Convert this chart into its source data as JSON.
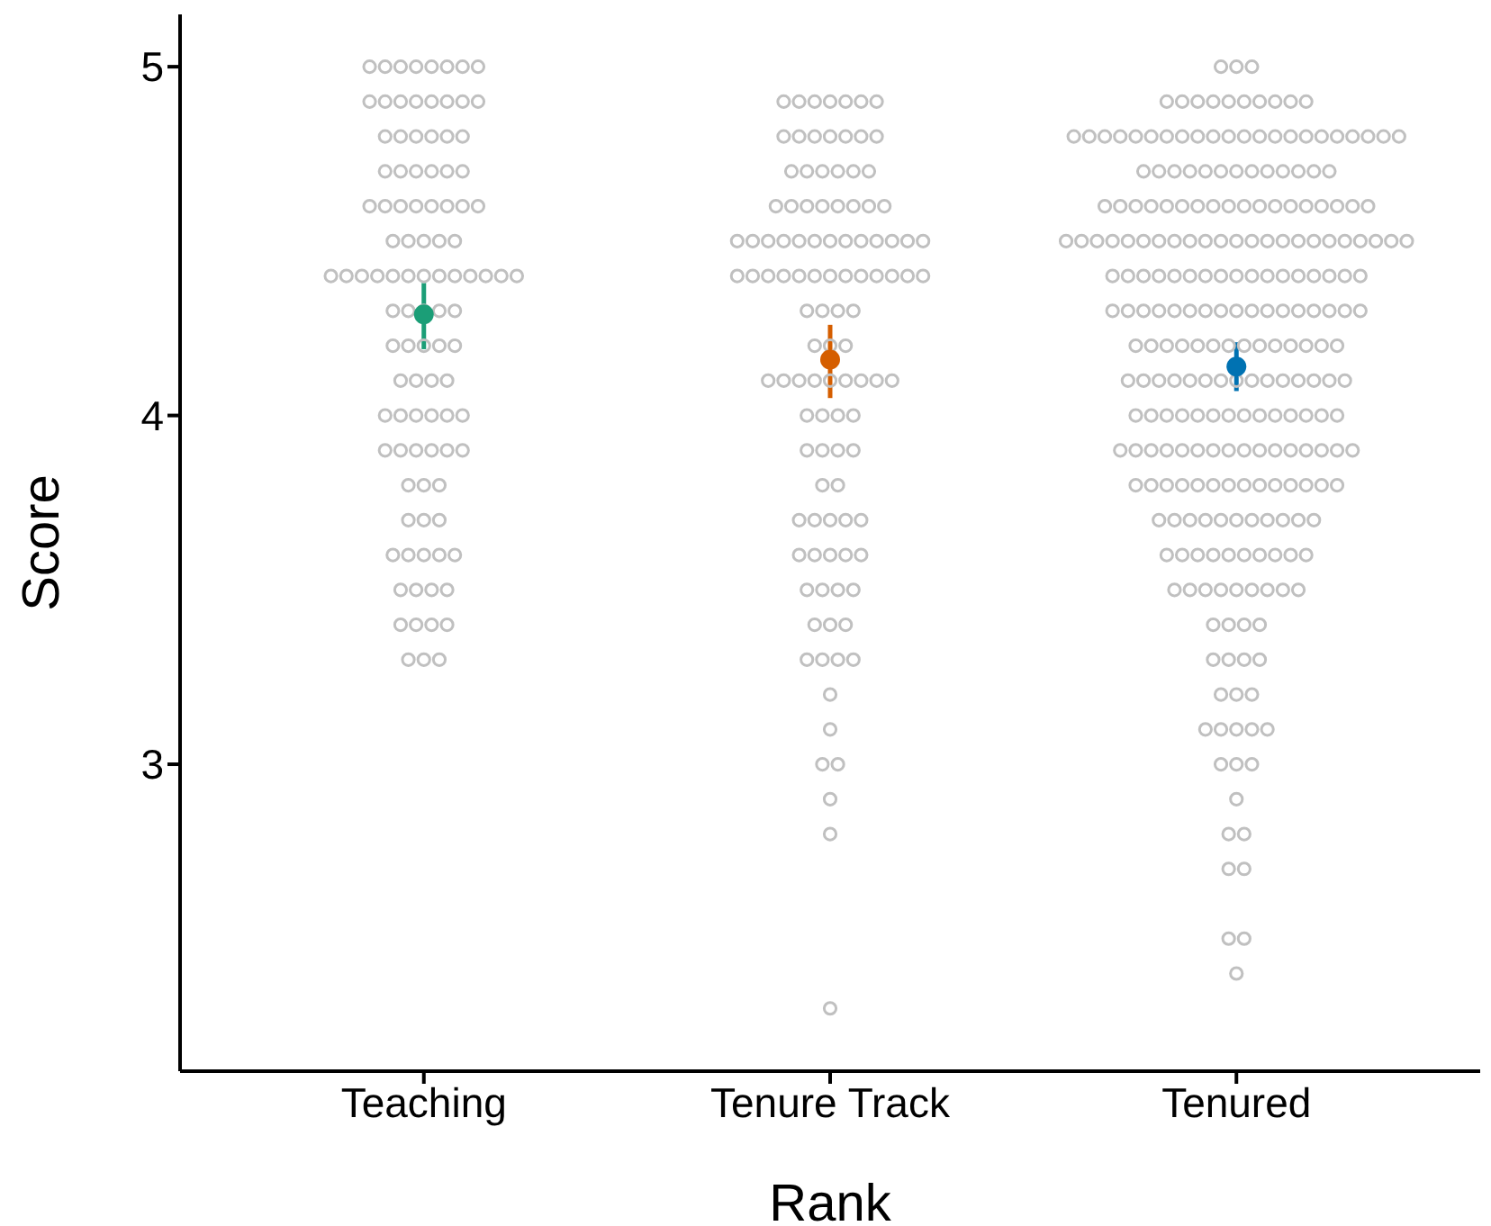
{
  "chart_data": {
    "type": "scatter",
    "xlabel": "Rank",
    "ylabel": "Score",
    "categories": [
      "Teaching",
      "Tenure Track",
      "Tenured"
    ],
    "ylim": [
      2.12,
      5.15
    ],
    "yticks": [
      3,
      4,
      5
    ],
    "marker": "circle",
    "series": [
      {
        "color": "#c0c0c0",
        "x": [
          "Teaching",
          "Teaching",
          "Teaching",
          "Teaching",
          "Teaching",
          "Teaching",
          "Teaching",
          "Teaching",
          "Teaching",
          "Teaching",
          "Teaching",
          "Teaching",
          "Teaching",
          "Teaching",
          "Teaching",
          "Teaching",
          "Teaching",
          "Teaching",
          "Teaching",
          "Teaching",
          "Teaching",
          "Teaching",
          "Teaching",
          "Teaching",
          "Teaching",
          "Teaching",
          "Teaching",
          "Teaching",
          "Teaching",
          "Teaching",
          "Teaching",
          "Teaching",
          "Teaching",
          "Teaching",
          "Teaching",
          "Teaching",
          "Teaching",
          "Teaching",
          "Teaching",
          "Teaching",
          "Teaching",
          "Teaching",
          "Teaching",
          "Teaching",
          "Teaching",
          "Teaching",
          "Teaching",
          "Teaching",
          "Teaching",
          "Teaching",
          "Teaching",
          "Teaching",
          "Teaching",
          "Teaching",
          "Teaching",
          "Teaching",
          "Teaching",
          "Teaching",
          "Teaching",
          "Teaching",
          "Teaching",
          "Teaching",
          "Teaching",
          "Teaching",
          "Teaching",
          "Teaching",
          "Teaching",
          "Teaching",
          "Teaching",
          "Teaching",
          "Teaching",
          "Teaching",
          "Teaching",
          "Teaching",
          "Teaching",
          "Teaching",
          "Teaching",
          "Teaching",
          "Teaching",
          "Teaching",
          "Teaching",
          "Teaching",
          "Teaching",
          "Teaching",
          "Teaching",
          "Teaching",
          "Teaching",
          "Teaching",
          "Teaching",
          "Teaching",
          "Teaching",
          "Teaching",
          "Teaching",
          "Teaching",
          "Teaching",
          "Teaching",
          "Teaching",
          "Teaching",
          "Teaching",
          "Teaching",
          "Teaching",
          "Teaching"
        ],
        "values": [
          5,
          5,
          5,
          5,
          5,
          5,
          5,
          5,
          4.9,
          4.9,
          4.9,
          4.9,
          4.9,
          4.9,
          4.9,
          4.9,
          4.8,
          4.8,
          4.8,
          4.8,
          4.8,
          4.8,
          4.7,
          4.7,
          4.7,
          4.7,
          4.7,
          4.7,
          4.6,
          4.6,
          4.6,
          4.6,
          4.6,
          4.6,
          4.6,
          4.6,
          4.5,
          4.5,
          4.5,
          4.5,
          4.5,
          4.4,
          4.4,
          4.4,
          4.4,
          4.4,
          4.4,
          4.4,
          4.4,
          4.4,
          4.4,
          4.4,
          4.4,
          4.4,
          4.3,
          4.3,
          4.3,
          4.3,
          4.3,
          4.2,
          4.2,
          4.2,
          4.2,
          4.2,
          4.1,
          4.1,
          4.1,
          4.1,
          4,
          4,
          4,
          4,
          4,
          4,
          3.9,
          3.9,
          3.9,
          3.9,
          3.9,
          3.9,
          3.8,
          3.8,
          3.8,
          3.7,
          3.7,
          3.7,
          3.6,
          3.6,
          3.6,
          3.6,
          3.6,
          3.5,
          3.5,
          3.5,
          3.5,
          3.4,
          3.4,
          3.4,
          3.4,
          3.3,
          3.3,
          3.3
        ]
      },
      {
        "color": "#c0c0c0",
        "x": [
          "Tenure Track",
          "Tenure Track",
          "Tenure Track",
          "Tenure Track",
          "Tenure Track",
          "Tenure Track",
          "Tenure Track",
          "Tenure Track",
          "Tenure Track",
          "Tenure Track",
          "Tenure Track",
          "Tenure Track",
          "Tenure Track",
          "Tenure Track",
          "Tenure Track",
          "Tenure Track",
          "Tenure Track",
          "Tenure Track",
          "Tenure Track",
          "Tenure Track",
          "Tenure Track",
          "Tenure Track",
          "Tenure Track",
          "Tenure Track",
          "Tenure Track",
          "Tenure Track",
          "Tenure Track",
          "Tenure Track",
          "Tenure Track",
          "Tenure Track",
          "Tenure Track",
          "Tenure Track",
          "Tenure Track",
          "Tenure Track",
          "Tenure Track",
          "Tenure Track",
          "Tenure Track",
          "Tenure Track",
          "Tenure Track",
          "Tenure Track",
          "Tenure Track",
          "Tenure Track",
          "Tenure Track",
          "Tenure Track",
          "Tenure Track",
          "Tenure Track",
          "Tenure Track",
          "Tenure Track",
          "Tenure Track",
          "Tenure Track",
          "Tenure Track",
          "Tenure Track",
          "Tenure Track",
          "Tenure Track",
          "Tenure Track",
          "Tenure Track",
          "Tenure Track",
          "Tenure Track",
          "Tenure Track",
          "Tenure Track",
          "Tenure Track",
          "Tenure Track",
          "Tenure Track",
          "Tenure Track",
          "Tenure Track",
          "Tenure Track",
          "Tenure Track",
          "Tenure Track",
          "Tenure Track",
          "Tenure Track",
          "Tenure Track",
          "Tenure Track",
          "Tenure Track",
          "Tenure Track",
          "Tenure Track",
          "Tenure Track",
          "Tenure Track",
          "Tenure Track",
          "Tenure Track",
          "Tenure Track",
          "Tenure Track",
          "Tenure Track",
          "Tenure Track",
          "Tenure Track",
          "Tenure Track",
          "Tenure Track",
          "Tenure Track",
          "Tenure Track",
          "Tenure Track",
          "Tenure Track",
          "Tenure Track",
          "Tenure Track",
          "Tenure Track",
          "Tenure Track",
          "Tenure Track",
          "Tenure Track",
          "Tenure Track",
          "Tenure Track",
          "Tenure Track",
          "Tenure Track",
          "Tenure Track",
          "Tenure Track",
          "Tenure Track",
          "Tenure Track",
          "Tenure Track",
          "Tenure Track",
          "Tenure Track",
          "Tenure Track"
        ],
        "values": [
          4.9,
          4.9,
          4.9,
          4.9,
          4.9,
          4.9,
          4.9,
          4.8,
          4.8,
          4.8,
          4.8,
          4.8,
          4.8,
          4.8,
          4.7,
          4.7,
          4.7,
          4.7,
          4.7,
          4.7,
          4.6,
          4.6,
          4.6,
          4.6,
          4.6,
          4.6,
          4.6,
          4.6,
          4.5,
          4.5,
          4.5,
          4.5,
          4.5,
          4.5,
          4.5,
          4.5,
          4.5,
          4.5,
          4.5,
          4.5,
          4.5,
          4.4,
          4.4,
          4.4,
          4.4,
          4.4,
          4.4,
          4.4,
          4.4,
          4.4,
          4.4,
          4.4,
          4.4,
          4.4,
          4.3,
          4.3,
          4.3,
          4.3,
          4.2,
          4.2,
          4.2,
          4.1,
          4.1,
          4.1,
          4.1,
          4.1,
          4.1,
          4.1,
          4.1,
          4.1,
          4,
          4,
          4,
          4,
          3.9,
          3.9,
          3.9,
          3.9,
          3.8,
          3.8,
          3.7,
          3.7,
          3.7,
          3.7,
          3.7,
          3.6,
          3.6,
          3.6,
          3.6,
          3.6,
          3.5,
          3.5,
          3.5,
          3.5,
          3.4,
          3.4,
          3.4,
          3.3,
          3.3,
          3.3,
          3.3,
          3.2,
          3.1,
          3,
          3,
          2.9,
          2.8,
          2.3
        ]
      },
      {
        "color": "#c0c0c0",
        "x": [
          "Tenured",
          "Tenured",
          "Tenured",
          "Tenured",
          "Tenured",
          "Tenured",
          "Tenured",
          "Tenured",
          "Tenured",
          "Tenured",
          "Tenured",
          "Tenured",
          "Tenured",
          "Tenured",
          "Tenured",
          "Tenured",
          "Tenured",
          "Tenured",
          "Tenured",
          "Tenured",
          "Tenured",
          "Tenured",
          "Tenured",
          "Tenured",
          "Tenured",
          "Tenured",
          "Tenured",
          "Tenured",
          "Tenured",
          "Tenured",
          "Tenured",
          "Tenured",
          "Tenured",
          "Tenured",
          "Tenured",
          "Tenured",
          "Tenured",
          "Tenured",
          "Tenured",
          "Tenured",
          "Tenured",
          "Tenured",
          "Tenured",
          "Tenured",
          "Tenured",
          "Tenured",
          "Tenured",
          "Tenured",
          "Tenured",
          "Tenured",
          "Tenured",
          "Tenured",
          "Tenured",
          "Tenured",
          "Tenured",
          "Tenured",
          "Tenured",
          "Tenured",
          "Tenured",
          "Tenured",
          "Tenured",
          "Tenured",
          "Tenured",
          "Tenured",
          "Tenured",
          "Tenured",
          "Tenured",
          "Tenured",
          "Tenured",
          "Tenured",
          "Tenured",
          "Tenured",
          "Tenured",
          "Tenured",
          "Tenured",
          "Tenured",
          "Tenured",
          "Tenured",
          "Tenured",
          "Tenured",
          "Tenured",
          "Tenured",
          "Tenured",
          "Tenured",
          "Tenured",
          "Tenured",
          "Tenured",
          "Tenured",
          "Tenured",
          "Tenured",
          "Tenured",
          "Tenured",
          "Tenured",
          "Tenured",
          "Tenured",
          "Tenured",
          "Tenured",
          "Tenured",
          "Tenured",
          "Tenured",
          "Tenured",
          "Tenured",
          "Tenured",
          "Tenured",
          "Tenured",
          "Tenured",
          "Tenured",
          "Tenured",
          "Tenured",
          "Tenured",
          "Tenured",
          "Tenured",
          "Tenured",
          "Tenured",
          "Tenured",
          "Tenured",
          "Tenured",
          "Tenured",
          "Tenured",
          "Tenured",
          "Tenured",
          "Tenured",
          "Tenured",
          "Tenured",
          "Tenured",
          "Tenured",
          "Tenured",
          "Tenured",
          "Tenured",
          "Tenured",
          "Tenured",
          "Tenured",
          "Tenured",
          "Tenured",
          "Tenured",
          "Tenured",
          "Tenured",
          "Tenured",
          "Tenured",
          "Tenured",
          "Tenured",
          "Tenured",
          "Tenured",
          "Tenured",
          "Tenured",
          "Tenured",
          "Tenured",
          "Tenured",
          "Tenured",
          "Tenured",
          "Tenured",
          "Tenured",
          "Tenured",
          "Tenured",
          "Tenured",
          "Tenured",
          "Tenured",
          "Tenured",
          "Tenured",
          "Tenured",
          "Tenured",
          "Tenured",
          "Tenured",
          "Tenured",
          "Tenured",
          "Tenured",
          "Tenured",
          "Tenured",
          "Tenured",
          "Tenured",
          "Tenured",
          "Tenured",
          "Tenured",
          "Tenured",
          "Tenured",
          "Tenured",
          "Tenured",
          "Tenured",
          "Tenured",
          "Tenured",
          "Tenured",
          "Tenured",
          "Tenured",
          "Tenured",
          "Tenured",
          "Tenured",
          "Tenured",
          "Tenured",
          "Tenured",
          "Tenured",
          "Tenured",
          "Tenured",
          "Tenured",
          "Tenured",
          "Tenured",
          "Tenured",
          "Tenured",
          "Tenured",
          "Tenured",
          "Tenured",
          "Tenured",
          "Tenured",
          "Tenured",
          "Tenured",
          "Tenured",
          "Tenured",
          "Tenured",
          "Tenured",
          "Tenured",
          "Tenured",
          "Tenured",
          "Tenured",
          "Tenured",
          "Tenured",
          "Tenured",
          "Tenured",
          "Tenured",
          "Tenured",
          "Tenured",
          "Tenured",
          "Tenured",
          "Tenured",
          "Tenured",
          "Tenured",
          "Tenured",
          "Tenured",
          "Tenured",
          "Tenured",
          "Tenured",
          "Tenured",
          "Tenured",
          "Tenured",
          "Tenured",
          "Tenured",
          "Tenured",
          "Tenured",
          "Tenured",
          "Tenured",
          "Tenured",
          "Tenured",
          "Tenured",
          "Tenured",
          "Tenured",
          "Tenured",
          "Tenured",
          "Tenured",
          "Tenured",
          "Tenured",
          "Tenured",
          "Tenured",
          "Tenured",
          "Tenured",
          "Tenured"
        ],
        "values": [
          5,
          5,
          5,
          4.9,
          4.9,
          4.9,
          4.9,
          4.9,
          4.9,
          4.9,
          4.9,
          4.9,
          4.9,
          4.8,
          4.8,
          4.8,
          4.8,
          4.8,
          4.8,
          4.8,
          4.8,
          4.8,
          4.8,
          4.8,
          4.8,
          4.8,
          4.8,
          4.8,
          4.8,
          4.8,
          4.8,
          4.8,
          4.8,
          4.8,
          4.8,
          4.7,
          4.7,
          4.7,
          4.7,
          4.7,
          4.7,
          4.7,
          4.7,
          4.7,
          4.7,
          4.7,
          4.7,
          4.7,
          4.6,
          4.6,
          4.6,
          4.6,
          4.6,
          4.6,
          4.6,
          4.6,
          4.6,
          4.6,
          4.6,
          4.6,
          4.6,
          4.6,
          4.6,
          4.6,
          4.6,
          4.6,
          4.5,
          4.5,
          4.5,
          4.5,
          4.5,
          4.5,
          4.5,
          4.5,
          4.5,
          4.5,
          4.5,
          4.5,
          4.5,
          4.5,
          4.5,
          4.5,
          4.5,
          4.5,
          4.5,
          4.5,
          4.5,
          4.5,
          4.5,
          4.4,
          4.4,
          4.4,
          4.4,
          4.4,
          4.4,
          4.4,
          4.4,
          4.4,
          4.4,
          4.4,
          4.4,
          4.4,
          4.4,
          4.4,
          4.4,
          4.4,
          4.3,
          4.3,
          4.3,
          4.3,
          4.3,
          4.3,
          4.3,
          4.3,
          4.3,
          4.3,
          4.3,
          4.3,
          4.3,
          4.3,
          4.3,
          4.3,
          4.3,
          4.2,
          4.2,
          4.2,
          4.2,
          4.2,
          4.2,
          4.2,
          4.2,
          4.2,
          4.2,
          4.2,
          4.2,
          4.2,
          4.2,
          4.1,
          4.1,
          4.1,
          4.1,
          4.1,
          4.1,
          4.1,
          4.1,
          4.1,
          4.1,
          4.1,
          4.1,
          4.1,
          4.1,
          4.1,
          4,
          4,
          4,
          4,
          4,
          4,
          4,
          4,
          4,
          4,
          4,
          4,
          4,
          4,
          3.9,
          3.9,
          3.9,
          3.9,
          3.9,
          3.9,
          3.9,
          3.9,
          3.9,
          3.9,
          3.9,
          3.9,
          3.9,
          3.9,
          3.9,
          3.9,
          3.8,
          3.8,
          3.8,
          3.8,
          3.8,
          3.8,
          3.8,
          3.8,
          3.8,
          3.8,
          3.8,
          3.8,
          3.8,
          3.8,
          3.7,
          3.7,
          3.7,
          3.7,
          3.7,
          3.7,
          3.7,
          3.7,
          3.7,
          3.7,
          3.7,
          3.6,
          3.6,
          3.6,
          3.6,
          3.6,
          3.6,
          3.6,
          3.6,
          3.6,
          3.6,
          3.5,
          3.5,
          3.5,
          3.5,
          3.5,
          3.5,
          3.5,
          3.5,
          3.5,
          3.4,
          3.4,
          3.4,
          3.4,
          3.3,
          3.3,
          3.3,
          3.3,
          3.2,
          3.2,
          3.2,
          3.1,
          3.1,
          3.1,
          3.1,
          3.1,
          3,
          3,
          3,
          2.9,
          2.8,
          2.8,
          2.7,
          2.7,
          2.5,
          2.5,
          2.4
        ]
      },
      {
        "x": [
          "Teaching",
          "Tenure Track",
          "Tenured"
        ],
        "values": [
          4.29,
          4.16,
          4.14
        ],
        "colors": [
          "#1b9e77",
          "#d55e00",
          "#0072b2"
        ],
        "errors": [
          [
            4.19,
            4.38
          ],
          [
            4.05,
            4.26
          ],
          [
            4.07,
            4.21
          ]
        ]
      }
    ]
  }
}
